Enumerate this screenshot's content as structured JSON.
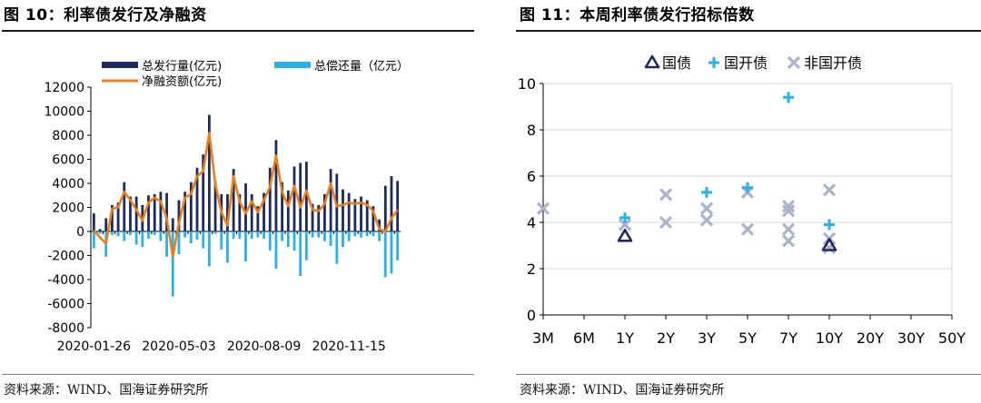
{
  "colors": {
    "navy": "#1f2a5c",
    "cyan": "#2ab2e6",
    "orange": "#e8801f",
    "grey": "#a9b4cb",
    "axis": "#000000"
  },
  "left": {
    "title": "图 10：利率债发行及净融资",
    "source": "资料来源：WIND、国海证券研究所"
  },
  "right": {
    "title": "图 11：本周利率债发行招标倍数",
    "source": "资料来源：WIND、国海证券研究所"
  },
  "chart_data": [
    {
      "type": "bar",
      "title": "利率债发行及净融资",
      "ylim": [
        -8000,
        12000
      ],
      "yticks": [
        -8000,
        -6000,
        -4000,
        -2000,
        0,
        2000,
        4000,
        6000,
        8000,
        10000,
        12000
      ],
      "ytick_labels": [
        "-8000",
        "-6000",
        "-4000",
        "-2000",
        "0",
        "2000",
        "4000",
        "6000",
        "8000",
        "10000",
        "12000"
      ],
      "xtick_labels": [
        "2020-01-26",
        "2020-05-03",
        "2020-08-09",
        "2020-11-15"
      ],
      "xtick_positions": [
        0,
        14,
        28,
        42
      ],
      "series": [
        {
          "name": "总发行量(亿元)",
          "kind": "bar",
          "color_key": "navy",
          "values": [
            1500,
            200,
            1100,
            2200,
            2400,
            4100,
            2900,
            2900,
            2200,
            3000,
            3100,
            3300,
            3200,
            1100,
            2600,
            3300,
            4100,
            5300,
            6400,
            9700,
            4100,
            3100,
            3100,
            5200,
            3100,
            4000,
            3100,
            2100,
            3200,
            5300,
            7600,
            4100,
            3400,
            5400,
            5700,
            5800,
            2300,
            2200,
            3100,
            5200,
            4800,
            3500,
            3200,
            2700,
            2900,
            2600,
            2100,
            1000,
            3800,
            4600,
            4200
          ]
        },
        {
          "name": "总偿还量（亿元）",
          "kind": "bar",
          "color_key": "cyan",
          "values": [
            -1400,
            -200,
            -2100,
            -300,
            -400,
            -800,
            -300,
            -1100,
            -1300,
            -600,
            -300,
            -800,
            -2100,
            -5400,
            -1900,
            -500,
            -1000,
            -700,
            -1400,
            -2900,
            -200,
            -1500,
            -2600,
            -600,
            -600,
            -2500,
            -600,
            -500,
            -600,
            -1600,
            -3100,
            -800,
            -1300,
            -1600,
            -3700,
            -2400,
            -500,
            -500,
            -800,
            -1200,
            -2700,
            -1300,
            -800,
            -400,
            -500,
            -400,
            -400,
            -800,
            -3800,
            -3500,
            -2400
          ]
        },
        {
          "name": "净融资额(亿元)",
          "kind": "line",
          "color_key": "orange",
          "values": [
            100,
            -500,
            -1000,
            1900,
            2000,
            3300,
            2600,
            1800,
            900,
            2400,
            2800,
            2500,
            1100,
            -2100,
            700,
            2800,
            3100,
            4600,
            5000,
            8200,
            3900,
            1600,
            500,
            4600,
            2500,
            1500,
            2500,
            1600,
            2600,
            3700,
            6300,
            3300,
            2100,
            3800,
            2000,
            3400,
            1800,
            1700,
            2300,
            4000,
            2100,
            2200,
            2400,
            2300,
            2400,
            2200,
            1700,
            200,
            0,
            1100,
            1800
          ]
        }
      ]
    },
    {
      "type": "scatter",
      "title": "本周利率债发行招标倍数",
      "ylim": [
        0,
        10
      ],
      "yticks": [
        0,
        2,
        4,
        6,
        8,
        10
      ],
      "ytick_labels": [
        "0",
        "2",
        "4",
        "6",
        "8",
        "10"
      ],
      "categories": [
        "3M",
        "6M",
        "1Y",
        "2Y",
        "3Y",
        "5Y",
        "7Y",
        "10Y",
        "20Y",
        "30Y",
        "50Y"
      ],
      "series": [
        {
          "name": "国债",
          "marker": "triangle",
          "color_key": "navy",
          "points": [
            [
              "1Y",
              3.4
            ],
            [
              "10Y",
              3.0
            ]
          ]
        },
        {
          "name": "国开债",
          "marker": "plus",
          "color_key": "cyan",
          "points": [
            [
              "1Y",
              4.2
            ],
            [
              "3Y",
              5.3
            ],
            [
              "5Y",
              5.5
            ],
            [
              "7Y",
              9.4
            ],
            [
              "10Y",
              3.9
            ]
          ]
        },
        {
          "name": "非国开债",
          "marker": "x",
          "color_key": "grey",
          "points": [
            [
              "3M",
              4.6
            ],
            [
              "1Y",
              3.9
            ],
            [
              "2Y",
              5.2
            ],
            [
              "2Y",
              4.0
            ],
            [
              "3Y",
              4.6
            ],
            [
              "3Y",
              4.1
            ],
            [
              "5Y",
              5.3
            ],
            [
              "5Y",
              3.7
            ],
            [
              "7Y",
              4.7
            ],
            [
              "7Y",
              4.5
            ],
            [
              "7Y",
              3.7
            ],
            [
              "7Y",
              3.2
            ],
            [
              "10Y",
              5.4
            ],
            [
              "10Y",
              3.3
            ],
            [
              "10Y",
              2.9
            ]
          ]
        }
      ]
    }
  ]
}
